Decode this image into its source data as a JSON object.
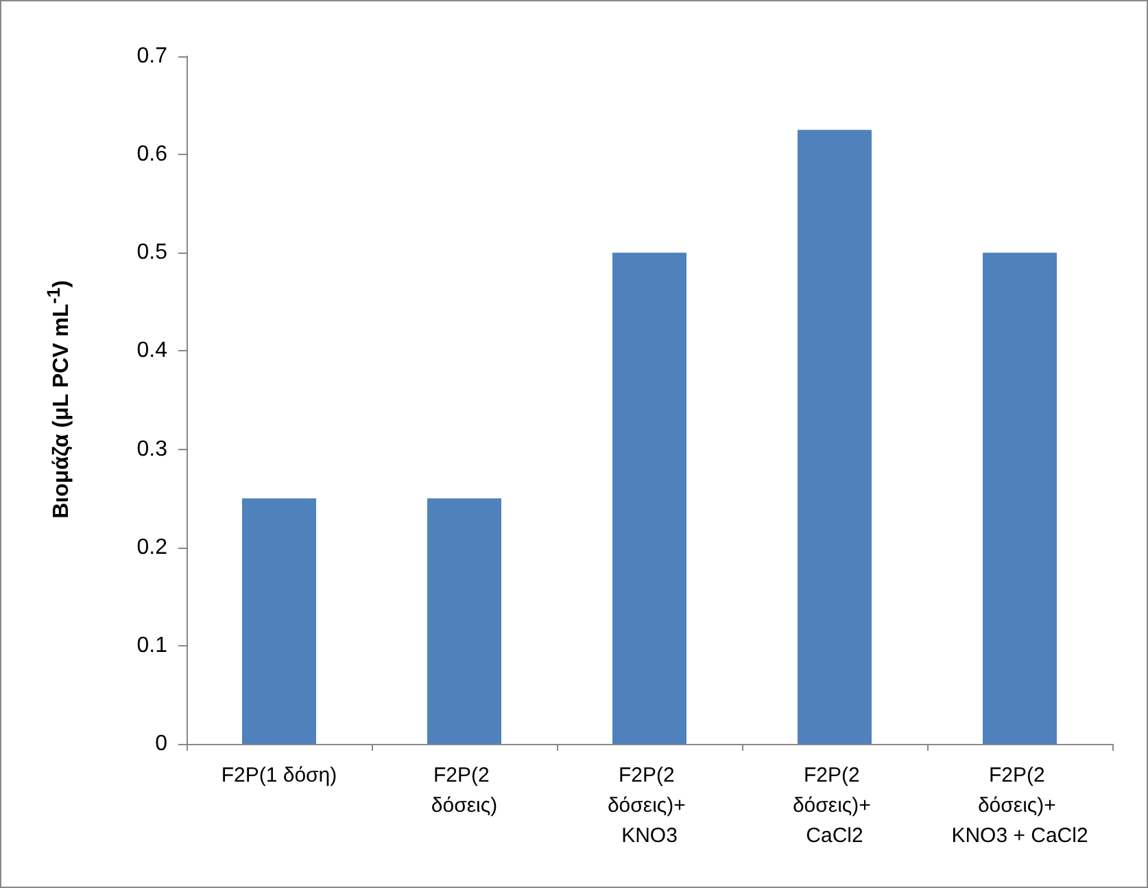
{
  "chart_data": {
    "type": "bar",
    "ylabel": "Βιομάζα (μL PCV mL$^{-1}$)",
    "categories": [
      "F2P(1 δόση)",
      "F2P(2 δόσεις)",
      "F2P(2 δόσεις)+ KNO3",
      "F2P(2 δόσεις)+ CaCl2",
      "F2P(2 δόσεις)+ KNO3 + CaCl2"
    ],
    "values": [
      0.25,
      0.25,
      0.5,
      0.625,
      0.5
    ],
    "color": "#4f81bd",
    "ylim": [
      0,
      0.7
    ],
    "yticks": [
      0,
      0.1,
      0.2,
      0.3,
      0.4,
      0.5,
      0.6,
      0.7
    ],
    "grid": false
  }
}
